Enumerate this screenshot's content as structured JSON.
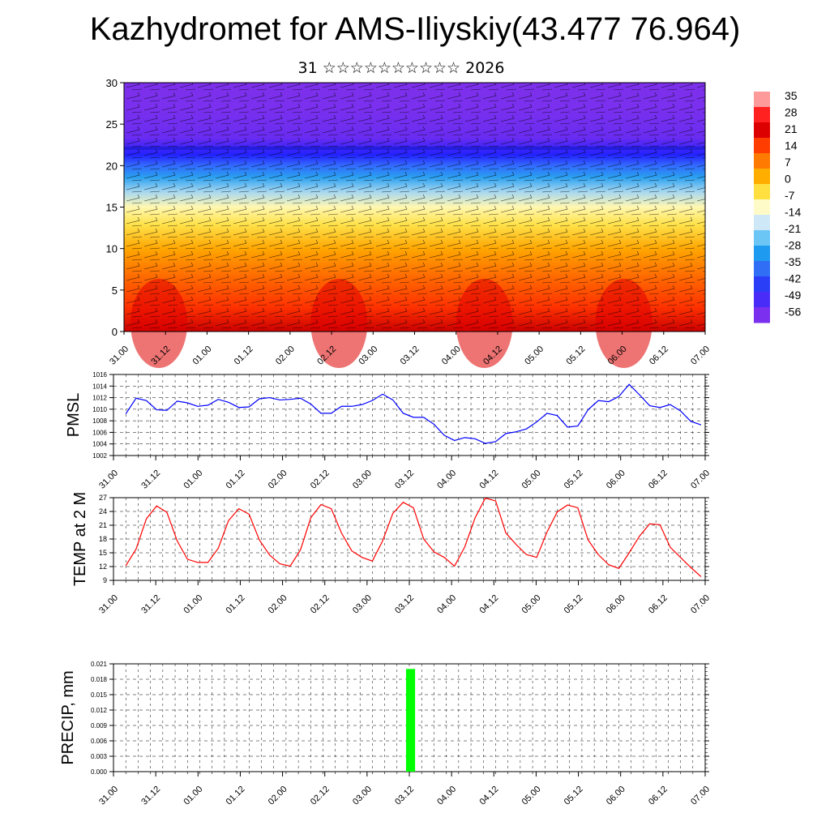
{
  "title": "Kazhydromet for AMS-Iliyskiy(43.477 76.964)",
  "subtitle": "31 ☆☆☆☆☆☆☆☆☆☆ 2026",
  "time_labels": [
    "31.00",
    "31.12",
    "01.00",
    "01.12",
    "02.00",
    "02.12",
    "03.00",
    "03.12",
    "04.00",
    "04.12",
    "05.00",
    "05.12",
    "06.00",
    "06.12",
    "07.00"
  ],
  "chart_data": [
    {
      "type": "heatmap",
      "name": "temperature-wind-cross-section",
      "title": "",
      "xlabel": "",
      "ylabel": "",
      "ylim": [
        0,
        30
      ],
      "y_ticks": [
        0,
        5,
        10,
        15,
        20,
        25,
        30
      ],
      "colorbar_label_values": [
        35,
        28,
        21,
        14,
        7,
        0,
        -7,
        -14,
        -21,
        -28,
        -35,
        -42,
        -49,
        -56
      ],
      "colorbar_labels": [
        "35",
        "28",
        "21",
        "14",
        "7",
        "0",
        "-7",
        "-14",
        "-21",
        "-28",
        "-35",
        "-42",
        "-49",
        "-56"
      ],
      "overlay": "wind barbs"
    },
    {
      "type": "line",
      "name": "pmsl",
      "ylabel": "PMSL",
      "ylim": [
        1002,
        1016
      ],
      "y_ticks": [
        1002,
        1004,
        1006,
        1008,
        1010,
        1012,
        1014,
        1016
      ],
      "color": "#0000ff",
      "values": [
        1009.2,
        1011.9,
        1011.5,
        1009.9,
        1009.8,
        1011.4,
        1011.1,
        1010.5,
        1010.7,
        1011.7,
        1011.2,
        1010.3,
        1010.4,
        1011.8,
        1012.0,
        1011.6,
        1011.7,
        1011.9,
        1010.9,
        1009.3,
        1009.3,
        1010.5,
        1010.5,
        1010.8,
        1011.5,
        1012.6,
        1011.6,
        1009.3,
        1008.6,
        1008.6,
        1007.4,
        1005.5,
        1004.6,
        1005.1,
        1004.9,
        1004.1,
        1004.4,
        1005.8,
        1006.1,
        1006.6,
        1007.8,
        1009.3,
        1008.9,
        1006.9,
        1007.1,
        1009.9,
        1011.5,
        1011.3,
        1012.2,
        1014.3,
        1012.5,
        1010.6,
        1010.3,
        1010.8,
        1009.7,
        1007.9,
        1007.3
      ]
    },
    {
      "type": "line",
      "name": "temp-2m",
      "ylabel": "TEMP at 2 M",
      "ylim": [
        9,
        27
      ],
      "y_ticks": [
        9,
        12,
        15,
        18,
        21,
        24,
        27
      ],
      "color": "#ff0000",
      "values": [
        12.2,
        15.8,
        22.4,
        25.2,
        23.8,
        17.6,
        13.6,
        12.9,
        12.9,
        16.0,
        22.0,
        24.6,
        23.4,
        17.8,
        14.5,
        12.6,
        12.1,
        15.6,
        22.6,
        25.5,
        24.6,
        19.3,
        15.4,
        14.0,
        13.2,
        17.6,
        23.6,
        26.0,
        24.8,
        18.0,
        15.2,
        14.0,
        12.1,
        16.3,
        22.6,
        26.9,
        26.3,
        19.3,
        16.8,
        14.6,
        14.0,
        19.5,
        23.9,
        25.4,
        24.8,
        17.8,
        14.6,
        12.4,
        11.6,
        15.0,
        18.6,
        21.3,
        21.1,
        16.2,
        14.0,
        11.8,
        9.8
      ]
    },
    {
      "type": "bar",
      "name": "precip",
      "ylabel": "PRECIP, mm",
      "ylim": [
        0,
        0.021
      ],
      "y_ticks": [
        "0.000",
        "0.003",
        "0.006",
        "0.009",
        "0.012",
        "0.015",
        "0.018",
        "0.021"
      ],
      "color": "#00ff00",
      "bars": [
        {
          "time": 72.3,
          "width": 2.2,
          "value": 0.02
        }
      ]
    }
  ]
}
